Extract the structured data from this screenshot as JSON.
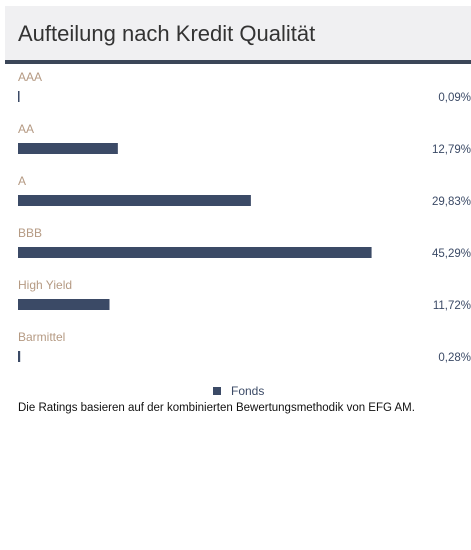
{
  "chart_data": {
    "type": "hbar",
    "title": "Aufteilung nach Kredit Qualität",
    "categories": [
      "AAA",
      "AA",
      "A",
      "BBB",
      "High Yield",
      "Barmittel"
    ],
    "series": [
      {
        "name": "Fonds",
        "color": "#3b4a66",
        "values": [
          0.09,
          12.79,
          29.83,
          45.29,
          11.72,
          0.28
        ],
        "value_labels": [
          "0,09%",
          "12,79%",
          "29,83%",
          "45,29%",
          "11,72%",
          "0,28%"
        ]
      }
    ],
    "xlim": [
      0,
      57
    ],
    "footnote": "Die Ratings basieren auf der kombinierten Bewertungsmethodik von EFG AM."
  }
}
